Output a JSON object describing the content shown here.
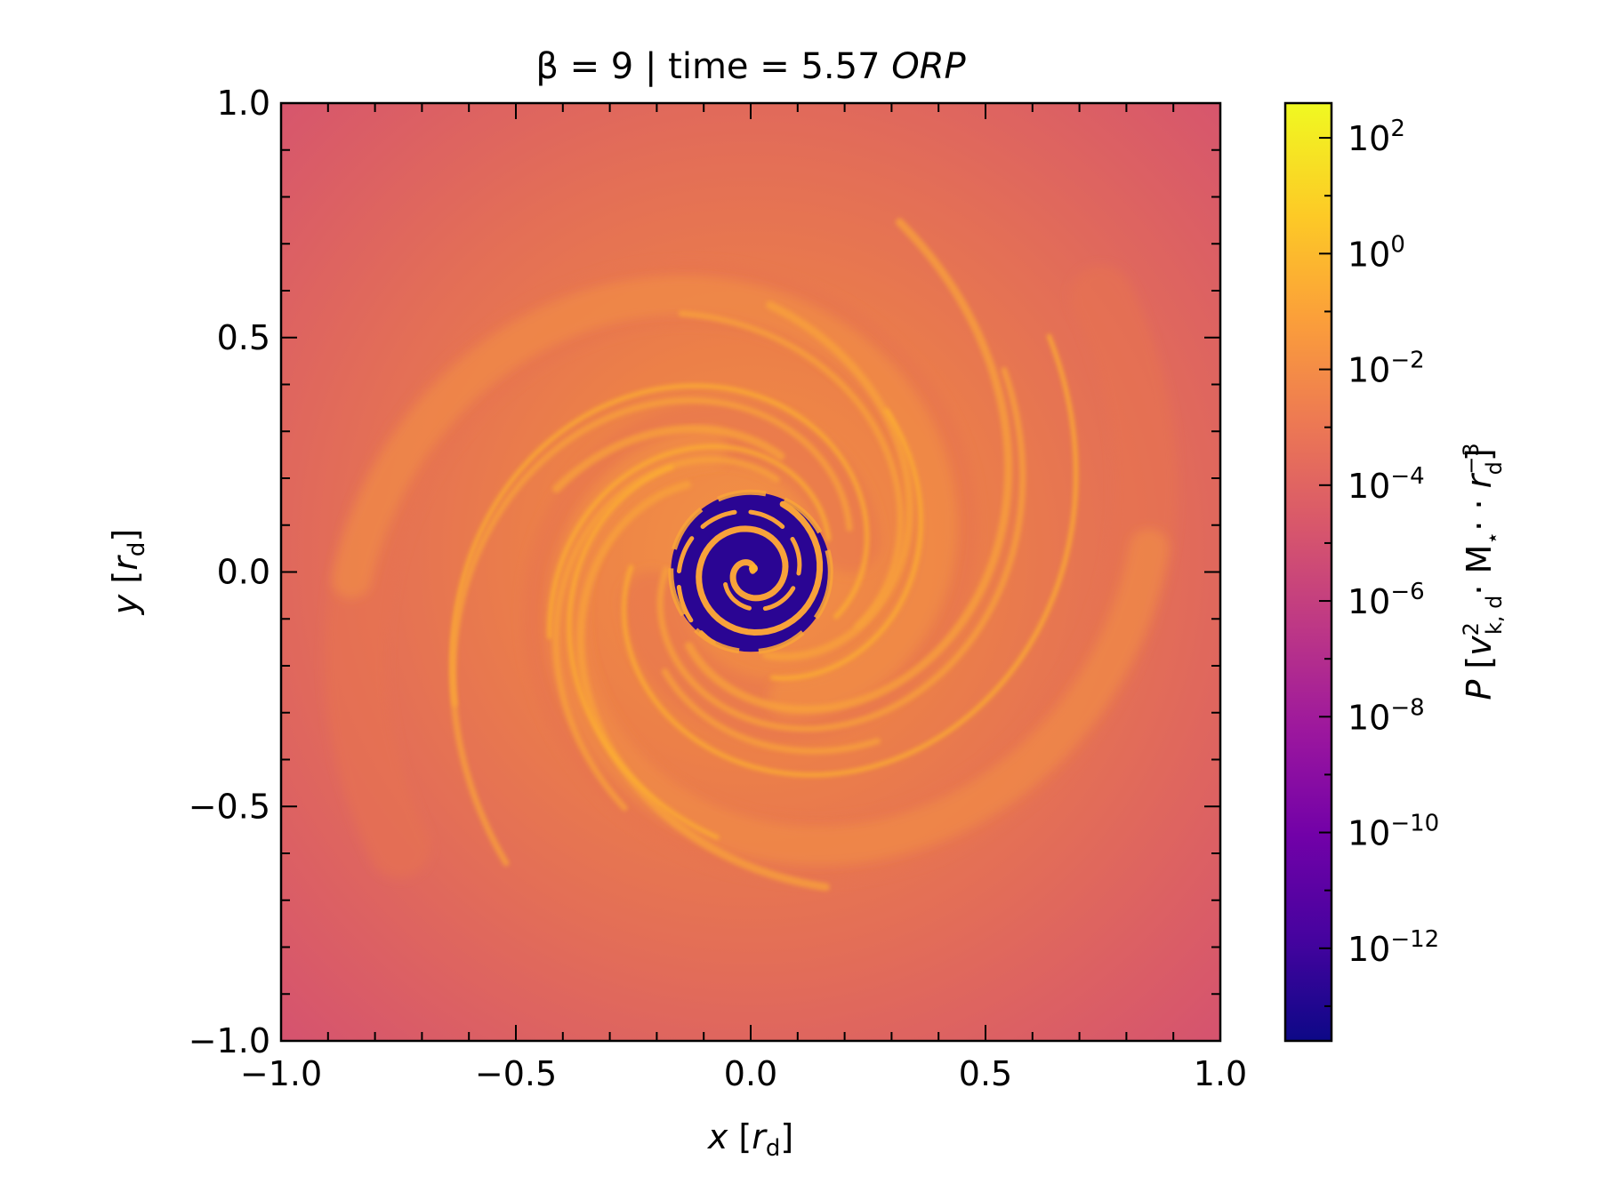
{
  "chart_data": {
    "type": "heatmap",
    "title": {
      "prefix": "β = 9 | time = 5.57 ",
      "emph": "ORP"
    },
    "xlabel": {
      "var": "x",
      "unit_main": "r",
      "unit_sub": "d"
    },
    "ylabel": {
      "var": "y",
      "unit_main": "r",
      "unit_sub": "d"
    },
    "xlim": [
      -1.0,
      1.0
    ],
    "ylim": [
      -1.0,
      1.0
    ],
    "xticks": [
      {
        "v": -1.0,
        "label": "−1.0"
      },
      {
        "v": -0.5,
        "label": "−0.5"
      },
      {
        "v": 0.0,
        "label": "0.0"
      },
      {
        "v": 0.5,
        "label": "0.5"
      },
      {
        "v": 1.0,
        "label": "1.0"
      }
    ],
    "yticks": [
      {
        "v": 1.0,
        "label": "1.0"
      },
      {
        "v": 0.5,
        "label": "0.5"
      },
      {
        "v": 0.0,
        "label": "0.0"
      },
      {
        "v": -0.5,
        "label": "−0.5"
      },
      {
        "v": -1.0,
        "label": "−1.0"
      }
    ],
    "minor_tick_step": 0.1,
    "colorbar": {
      "colormap": "plasma",
      "scale": "log",
      "range_exponent": [
        -13.6,
        2.6
      ],
      "label": {
        "var": "P",
        "text": "[v²k,d · M⋆ · r⁻³d]"
      },
      "ticks": [
        {
          "exp": 2,
          "base": "10",
          "sup": "2"
        },
        {
          "exp": 0,
          "base": "10",
          "sup": "0"
        },
        {
          "exp": -2,
          "base": "10",
          "sup": "−2"
        },
        {
          "exp": -4,
          "base": "10",
          "sup": "−4"
        },
        {
          "exp": -6,
          "base": "10",
          "sup": "−6"
        },
        {
          "exp": -8,
          "base": "10",
          "sup": "−8"
        },
        {
          "exp": -10,
          "base": "10",
          "sup": "−10"
        },
        {
          "exp": -12,
          "base": "10",
          "sup": "−12"
        }
      ]
    },
    "field_description": {
      "background_level_exp": -4.5,
      "spiral_arms_level_exp": -1.5,
      "core_level_exp": -13.0,
      "core_radius": 0.17
    },
    "colors": {
      "outer": "#d5536f",
      "mid": "#e8734f",
      "arm": "#f8a23a",
      "arm_bright": "#fdb32f",
      "core": "#2a0593",
      "plasma_stops": [
        "#0d0887",
        "#46039f",
        "#7201a8",
        "#9c179e",
        "#bd3786",
        "#d8576b",
        "#ed7953",
        "#fb9f3a",
        "#fdca26",
        "#f0f921"
      ]
    }
  }
}
